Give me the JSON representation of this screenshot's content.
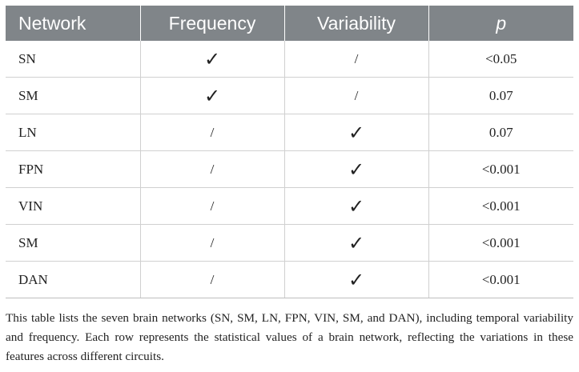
{
  "table": {
    "headers": [
      "Network",
      "Frequency",
      "Variability",
      "p"
    ],
    "rows": [
      [
        "SN",
        "✓",
        "/",
        "<0.05"
      ],
      [
        "SM",
        "✓",
        "/",
        "0.07"
      ],
      [
        "LN",
        "/",
        "✓",
        "0.07"
      ],
      [
        "FPN",
        "/",
        "✓",
        "<0.001"
      ],
      [
        "VIN",
        "/",
        "✓",
        "<0.001"
      ],
      [
        "SM",
        "/",
        "✓",
        "<0.001"
      ],
      [
        "DAN",
        "/",
        "✓",
        "<0.001"
      ]
    ]
  },
  "caption": "This table lists the seven brain networks (SN, SM, LN, FPN, VIN, SM, and DAN), including temporal variability and frequency. Each row represents the statistical values of a brain network, reflecting the variations in these features across different circuits.",
  "colors": {
    "header_bg": "#808589",
    "header_text": "#ffffff",
    "grid": "#d0d0d0",
    "text": "#222222"
  }
}
